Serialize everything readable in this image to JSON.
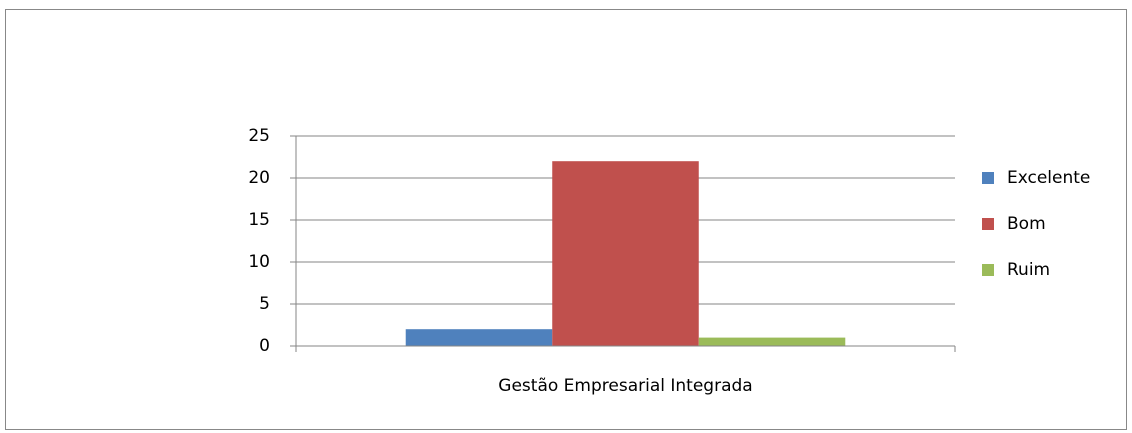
{
  "chart_data": {
    "type": "bar",
    "categories": [
      "Gestão Empresarial Integrada"
    ],
    "series": [
      {
        "name": "Excelente",
        "color": "#4f81bd",
        "values": [
          2
        ]
      },
      {
        "name": "Bom",
        "color": "#c0504d",
        "values": [
          22
        ]
      },
      {
        "name": "Ruim",
        "color": "#9bbb59",
        "values": [
          1
        ]
      }
    ],
    "ylim": [
      0,
      25
    ],
    "yticks": [
      0,
      5,
      10,
      15,
      20,
      25
    ],
    "grid": true,
    "legend": "right"
  }
}
